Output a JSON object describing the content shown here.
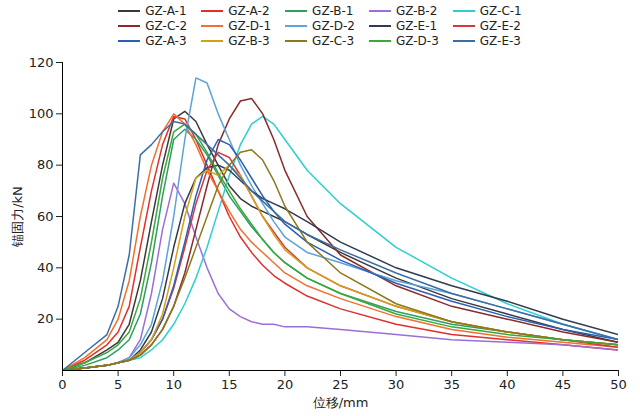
{
  "chart_data": {
    "type": "line",
    "x_label": "位移/mm",
    "y_label": "锚固力/kN",
    "xlim": [
      0,
      50
    ],
    "xticks": [
      0,
      5,
      10,
      15,
      20,
      25,
      30,
      35,
      40,
      45,
      50
    ],
    "ylim": [
      0,
      120
    ],
    "yticks": [
      20,
      40,
      60,
      80,
      100,
      120
    ],
    "grid": false,
    "legend": "top",
    "x": [
      0,
      2,
      4,
      5,
      6,
      7,
      8,
      9,
      10,
      11,
      12,
      13,
      14,
      15,
      16,
      17,
      18,
      19,
      20,
      22,
      25,
      30,
      35,
      40,
      45,
      50
    ],
    "series": [
      {
        "name": "GZ-A-1",
        "color": "#3a3a3a",
        "values": [
          0,
          3,
          8,
          11,
          18,
          35,
          58,
          80,
          98,
          101,
          97,
          88,
          80,
          72,
          67,
          64,
          62,
          60,
          58,
          53,
          46,
          36,
          28,
          22,
          16,
          11
        ]
      },
      {
        "name": "GZ-A-2",
        "color": "#e0302c",
        "values": [
          0,
          4,
          10,
          15,
          25,
          48,
          70,
          88,
          99,
          98,
          90,
          80,
          70,
          60,
          52,
          46,
          41,
          37,
          34,
          29,
          24,
          18,
          14,
          12,
          10,
          8
        ]
      },
      {
        "name": "GZ-B-1",
        "color": "#2e9e62",
        "values": [
          0,
          2,
          5,
          8,
          12,
          22,
          42,
          68,
          90,
          94,
          90,
          84,
          76,
          68,
          62,
          56,
          51,
          46,
          42,
          36,
          30,
          23,
          18,
          15,
          12,
          10
        ]
      },
      {
        "name": "GZ-B-2",
        "color": "#9b6fd6",
        "values": [
          0,
          1,
          2,
          3,
          5,
          12,
          30,
          55,
          73,
          65,
          52,
          40,
          30,
          24,
          21,
          19,
          18,
          18,
          17,
          17,
          16,
          14,
          12,
          11,
          10,
          8
        ]
      },
      {
        "name": "GZ-C-1",
        "color": "#2ccfcf",
        "values": [
          0,
          1,
          2,
          3,
          4,
          5,
          8,
          12,
          18,
          26,
          36,
          48,
          62,
          76,
          88,
          96,
          99,
          96,
          90,
          78,
          65,
          48,
          36,
          26,
          18,
          12
        ]
      },
      {
        "name": "GZ-C-2",
        "color": "#8b2a2a",
        "values": [
          0,
          1,
          2,
          3,
          4,
          6,
          10,
          16,
          25,
          38,
          55,
          72,
          88,
          98,
          105,
          106,
          100,
          90,
          78,
          60,
          45,
          33,
          25,
          20,
          15,
          11
        ]
      },
      {
        "name": "GZ-D-1",
        "color": "#f07030",
        "values": [
          0,
          5,
          12,
          20,
          35,
          60,
          80,
          93,
          100,
          96,
          88,
          78,
          70,
          62,
          55,
          50,
          46,
          42,
          38,
          33,
          28,
          21,
          16,
          13,
          11,
          9
        ]
      },
      {
        "name": "GZ-D-2",
        "color": "#5ba3d9",
        "values": [
          0,
          1,
          2,
          3,
          5,
          10,
          18,
          35,
          60,
          90,
          114,
          112,
          100,
          90,
          80,
          72,
          65,
          58,
          52,
          46,
          42,
          35,
          30,
          24,
          18,
          12
        ]
      },
      {
        "name": "GZ-E-1",
        "color": "#2f3b4f",
        "values": [
          0,
          1,
          2,
          3,
          4,
          8,
          15,
          28,
          48,
          65,
          75,
          79,
          80,
          78,
          74,
          70,
          67,
          65,
          63,
          58,
          50,
          40,
          33,
          27,
          20,
          14
        ]
      },
      {
        "name": "GZ-E-2",
        "color": "#d9363e",
        "values": [
          0,
          1,
          2,
          3,
          4,
          7,
          12,
          20,
          32,
          48,
          65,
          78,
          85,
          83,
          76,
          68,
          60,
          54,
          48,
          40,
          33,
          25,
          19,
          15,
          12,
          9
        ]
      },
      {
        "name": "GZ-A-3",
        "color": "#2b5fb3",
        "values": [
          0,
          1,
          2,
          3,
          4,
          7,
          12,
          20,
          33,
          50,
          68,
          82,
          90,
          88,
          82,
          75,
          68,
          62,
          57,
          50,
          43,
          34,
          27,
          21,
          16,
          12
        ]
      },
      {
        "name": "GZ-B-3",
        "color": "#d4a017",
        "values": [
          0,
          1,
          2,
          3,
          4,
          7,
          12,
          22,
          40,
          60,
          75,
          78,
          76,
          80,
          76,
          68,
          60,
          53,
          47,
          40,
          33,
          25,
          19,
          15,
          12,
          10
        ]
      },
      {
        "name": "GZ-C-3",
        "color": "#8a7a1a",
        "values": [
          0,
          1,
          2,
          3,
          4,
          6,
          10,
          16,
          25,
          36,
          48,
          60,
          72,
          80,
          85,
          86,
          82,
          74,
          64,
          50,
          38,
          26,
          19,
          15,
          12,
          10
        ]
      },
      {
        "name": "GZ-D-3",
        "color": "#3aa83a",
        "values": [
          0,
          3,
          7,
          10,
          15,
          28,
          50,
          75,
          93,
          96,
          92,
          85,
          77,
          70,
          63,
          57,
          51,
          46,
          42,
          36,
          30,
          22,
          17,
          14,
          12,
          10
        ]
      },
      {
        "name": "GZ-E-3",
        "color": "#3b6ea5",
        "values": [
          0,
          7,
          14,
          25,
          45,
          84,
          88,
          93,
          97,
          96,
          92,
          88,
          84,
          80,
          75,
          70,
          66,
          62,
          58,
          53,
          47,
          38,
          30,
          24,
          18,
          12
        ]
      }
    ]
  }
}
